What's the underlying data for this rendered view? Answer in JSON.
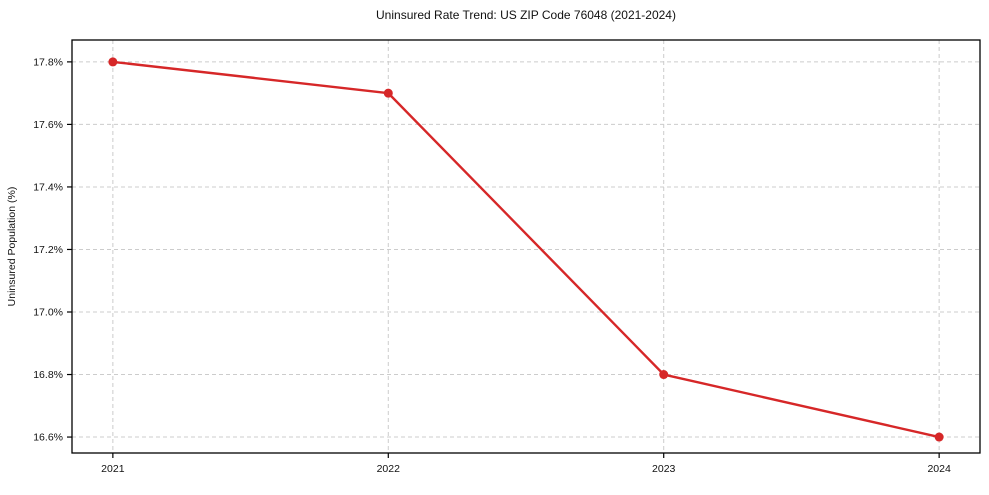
{
  "page": {
    "background": "#ffffff"
  },
  "chart_data": {
    "type": "line",
    "title": "Uninsured Rate Trend: US ZIP Code 76048 (2021-2024)",
    "xlabel": "",
    "ylabel": "Uninsured Population (%)",
    "categories": [
      "2021",
      "2022",
      "2023",
      "2024"
    ],
    "series": [
      {
        "name": "Uninsured Rate",
        "values": [
          17.8,
          17.7,
          16.8,
          16.6
        ]
      }
    ],
    "y_ticks": [
      16.6,
      16.8,
      17.0,
      17.2,
      17.4,
      17.6,
      17.8
    ],
    "y_tick_labels": [
      "16.6%",
      "16.8%",
      "17.0%",
      "17.2%",
      "17.4%",
      "17.6%",
      "17.8%"
    ],
    "ylim": [
      16.549,
      17.87
    ],
    "grid": true,
    "grid_style": "dashed",
    "legend": "none",
    "colors": {
      "line": "#d62728",
      "marker": "#d62728",
      "grid": "#cccccc",
      "spine": "#000000",
      "text": "#111111"
    }
  }
}
